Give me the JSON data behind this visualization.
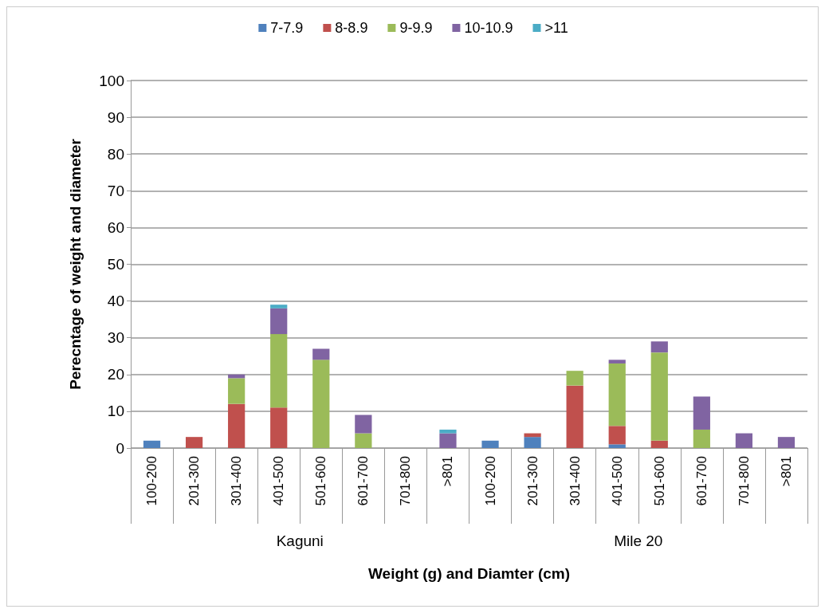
{
  "chart_data": {
    "type": "bar",
    "stacked": true,
    "categories": [
      "100-200",
      "201-300",
      "301-400",
      "401-500",
      "501-600",
      "601-700",
      "701-800",
      ">801",
      "100-200",
      "201-300",
      "301-400",
      "401-500",
      "501-600",
      "601-700",
      "701-800",
      ">801"
    ],
    "series": [
      {
        "name": "7-7.9",
        "color": "#4f81bd",
        "values": [
          2,
          0,
          0,
          0,
          0,
          0,
          0,
          0,
          2,
          3,
          0,
          1,
          0,
          0,
          0,
          0
        ]
      },
      {
        "name": "8-8.9",
        "color": "#c0504d",
        "values": [
          0,
          3,
          12,
          11,
          0,
          0,
          0,
          0,
          0,
          1,
          17,
          5,
          2,
          0,
          0,
          0
        ]
      },
      {
        "name": "9-9.9",
        "color": "#9bbb59",
        "values": [
          0,
          0,
          7,
          20,
          24,
          4,
          0,
          0,
          0,
          0,
          4,
          17,
          24,
          5,
          0,
          0
        ]
      },
      {
        "name": "10-10.9",
        "color": "#8064a2",
        "values": [
          0,
          0,
          1,
          7,
          3,
          5,
          0,
          4,
          0,
          0,
          0,
          1,
          3,
          9,
          4,
          3
        ]
      },
      {
        "name": ">11",
        "color": "#4bacc6",
        "values": [
          0,
          0,
          0,
          1,
          0,
          0,
          0,
          1,
          0,
          0,
          0,
          0,
          0,
          0,
          0,
          0
        ]
      }
    ],
    "ylim": [
      0,
      100
    ],
    "yticks": [
      0,
      10,
      20,
      30,
      40,
      50,
      60,
      70,
      80,
      90,
      100
    ],
    "ylabel": "Perecntage of weight and diameter",
    "xlabel": "Weight (g) and Diamter (cm)",
    "annotations": [
      "Kaguni",
      "Mile 20"
    ],
    "grid": "y",
    "legend": "top"
  }
}
